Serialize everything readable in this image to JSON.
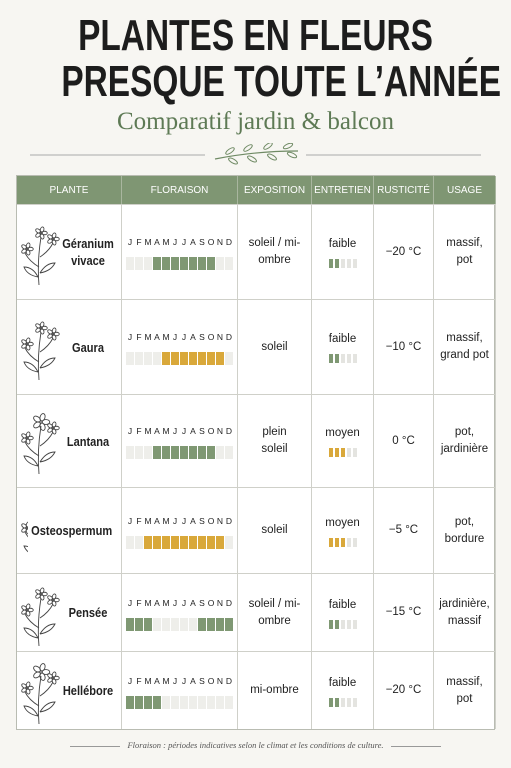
{
  "header": {
    "title_lines": [
      "PLANTES EN FLEURS",
      "PRESQUE TOUTE L’ANNÉE"
    ],
    "subtitle": "Comparatif jardin & balcon"
  },
  "table": {
    "columns": [
      "PLANTE",
      "FLORAISON",
      "EXPOSITION",
      "ENTRETIEN",
      "RUSTICITÉ",
      "USAGE"
    ],
    "months": [
      "J",
      "F",
      "M",
      "A",
      "M",
      "J",
      "J",
      "A",
      "S",
      "O",
      "N",
      "D"
    ],
    "rows": [
      {
        "plant": "Géranium vivace",
        "bloom_months": [
          4,
          5,
          6,
          7,
          8,
          9,
          10
        ],
        "bloom_color": "#7f9873",
        "exposure": "soleil / mi-ombre",
        "maintenance": "faible",
        "maintenance_level": 2,
        "maintenance_color": "#7f9873",
        "hardiness": "−20 °C",
        "usage": "massif, pot"
      },
      {
        "plant": "Gaura",
        "bloom_months": [
          5,
          6,
          7,
          8,
          9,
          10,
          11
        ],
        "bloom_color": "#d9a83a",
        "exposure": "soleil",
        "maintenance": "faible",
        "maintenance_level": 2,
        "maintenance_color": "#7f9873",
        "hardiness": "−10 °C",
        "usage": "massif, grand pot"
      },
      {
        "plant": "Lantana",
        "bloom_months": [
          4,
          5,
          6,
          7,
          8,
          9,
          10
        ],
        "bloom_color": "#7f9873",
        "exposure": "plein soleil",
        "maintenance": "moyen",
        "maintenance_level": 3,
        "maintenance_color": "#d9a83a",
        "hardiness": "0 °C",
        "usage": "pot, jardinière"
      },
      {
        "plant": "Osteospermum",
        "bloom_months": [
          3,
          4,
          5,
          6,
          7,
          8,
          9,
          10,
          11
        ],
        "bloom_color": "#d9a83a",
        "exposure": "soleil",
        "maintenance": "moyen",
        "maintenance_level": 3,
        "maintenance_color": "#d9a83a",
        "hardiness": "−5 °C",
        "usage": "pot, bordure"
      },
      {
        "plant": "Pensée",
        "bloom_months": [
          1,
          2,
          3,
          9,
          10,
          11,
          12
        ],
        "bloom_color": "#7f9873",
        "exposure": "soleil / mi-ombre",
        "maintenance": "faible",
        "maintenance_level": 2,
        "maintenance_color": "#7f9873",
        "hardiness": "−15 °C",
        "usage": "jardinière, massif"
      },
      {
        "plant": "Hellébore",
        "bloom_months": [
          1,
          2,
          3,
          4
        ],
        "bloom_color": "#7f9873",
        "exposure": "mi-ombre",
        "maintenance": "faible",
        "maintenance_level": 2,
        "maintenance_color": "#7f9873",
        "hardiness": "−20 °C",
        "usage": "massif, pot"
      }
    ]
  },
  "footer": "Floraison : périodes indicatives selon le climat et les conditions de culture."
}
